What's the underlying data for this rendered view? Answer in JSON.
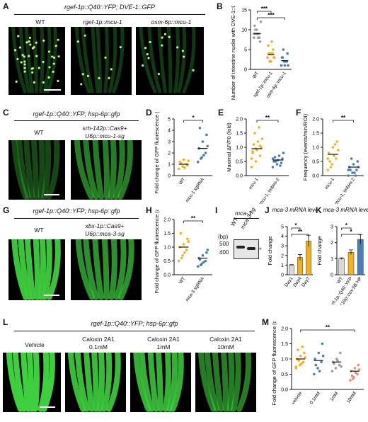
{
  "panels": {
    "A": {
      "letter": "A",
      "header": "rgef-1p::Q40::YFP; DVE-1::GFP",
      "labels": [
        "WT",
        "rgef-1p::mcu-1",
        "osm-6p::mcu-1"
      ]
    },
    "B": {
      "letter": "B"
    },
    "C": {
      "letter": "C",
      "header": "rgef-1p::Q40::YFP; hsp-6p::gfp",
      "labels": [
        "WT",
        "srh-142p::Cas9+",
        "U6p::mcu-1-sg"
      ]
    },
    "D": {
      "letter": "D"
    },
    "E": {
      "letter": "E"
    },
    "F": {
      "letter": "F"
    },
    "G": {
      "letter": "G",
      "header": "rgef-1p::Q40::YFP; hsp-6p::gfp",
      "labels": [
        "WT",
        "xbx-1p::Cas9+",
        "U6p::mca-3-sg"
      ]
    },
    "H": {
      "letter": "H"
    },
    "I": {
      "letter": "I",
      "title": "mca-3",
      "lanes": [
        "WT",
        "mca-3-sg"
      ],
      "bp_label": "(bp)",
      "markers": [
        "500",
        "400"
      ],
      "star": "*"
    },
    "J": {
      "letter": "J"
    },
    "K": {
      "letter": "K"
    },
    "L": {
      "letter": "L",
      "header": "rgef-1p::Q40::YFP; hsp-6p::gfp",
      "labels": [
        "Vehicle",
        "Caloxin 2A1",
        "0.1mM",
        "Caloxin 2A1",
        "1mM",
        "Caloxin 2A1",
        "10mM"
      ]
    },
    "M": {
      "letter": "M"
    }
  },
  "chart_data": [
    {
      "id": "B",
      "type": "scatter",
      "title": "",
      "ylabel": "Number of intestine nuclei with DVE-1::GFP puncta",
      "ylim": [
        0,
        15
      ],
      "yticks": [
        0,
        5,
        10,
        15
      ],
      "categories": [
        "WT",
        "rgef-1p::mcu-1",
        "osm-6p::mcu-1"
      ],
      "means": [
        9,
        3.7,
        2.2
      ],
      "points": [
        [
          9,
          10,
          8,
          11,
          9,
          7,
          10,
          8,
          12,
          9,
          9,
          8
        ],
        [
          3,
          4,
          5,
          6,
          2,
          3,
          4,
          7,
          3,
          2,
          4,
          3
        ],
        [
          1,
          2,
          2,
          3,
          1,
          4,
          3,
          2,
          1,
          5,
          2,
          1
        ]
      ],
      "colors": [
        "#9e9e9e",
        "#f5b01d",
        "#4a7fb5"
      ],
      "sig": [
        {
          "from": 0,
          "to": 1,
          "label": "***"
        },
        {
          "from": 0,
          "to": 2,
          "label": "***"
        }
      ]
    },
    {
      "id": "D",
      "type": "scatter",
      "ylabel": "Fold change of GFP fluorescence (a.u.)",
      "ylim": [
        0,
        5
      ],
      "yticks": [
        0,
        1,
        2,
        3,
        4,
        5
      ],
      "categories": [
        "WT",
        "mcu-1 sgRNA"
      ],
      "means": [
        1.0,
        2.4
      ],
      "points": [
        [
          0.6,
          0.8,
          1.0,
          1.2,
          1.4,
          0.9,
          1.1,
          0.7,
          1.3
        ],
        [
          1.2,
          1.6,
          2.0,
          2.4,
          3.0,
          3.6,
          4.2,
          1.8,
          2.6,
          1.5
        ]
      ],
      "colors": [
        "#f5b01d",
        "#4a7fb5"
      ],
      "sig": [
        {
          "from": 0,
          "to": 1,
          "label": "*"
        }
      ]
    },
    {
      "id": "E",
      "type": "scatter",
      "ylabel": "Maximal ΔF/F0 (fold)",
      "ylim": [
        0,
        2
      ],
      "yticks": [
        0.0,
        0.5,
        1.0,
        1.5,
        2.0
      ],
      "categories": [
        "mcu-1",
        "mcu-1; tmbim-2"
      ],
      "means": [
        0.95,
        0.55
      ],
      "points": [
        [
          0.3,
          0.5,
          0.7,
          0.8,
          0.9,
          1.0,
          1.1,
          1.2,
          1.3,
          1.5,
          1.7,
          0.6,
          0.95,
          1.05,
          0.85
        ],
        [
          0.3,
          0.4,
          0.45,
          0.5,
          0.55,
          0.6,
          0.65,
          0.7,
          0.8,
          0.5,
          0.35,
          0.6
        ]
      ],
      "colors": [
        "#f5b01d",
        "#4a7fb5"
      ],
      "sig": [
        {
          "from": 0,
          "to": 1,
          "label": "**"
        }
      ]
    },
    {
      "id": "F",
      "type": "scatter",
      "ylabel": "Frequency (events/min/ROI)",
      "ylim": [
        0,
        2
      ],
      "yticks": [
        0.0,
        0.5,
        1.0,
        1.5,
        2.0
      ],
      "categories": [
        "mcu-1",
        "mcu-1; tmbim-2"
      ],
      "means": [
        0.75,
        0.3
      ],
      "points": [
        [
          0.2,
          0.4,
          0.6,
          0.8,
          1.0,
          1.2,
          0.5,
          0.7,
          0.9,
          0.3,
          1.1,
          0.6
        ],
        [
          0.0,
          0.1,
          0.2,
          0.3,
          0.4,
          0.5,
          0.2,
          0.1,
          0.3,
          0.6,
          0.0,
          0.2
        ]
      ],
      "colors": [
        "#f5b01d",
        "#4a7fb5"
      ],
      "sig": [
        {
          "from": 0,
          "to": 1,
          "label": "**"
        }
      ]
    },
    {
      "id": "H",
      "type": "scatter",
      "ylabel": "Fold change of GFP fluorescence (a.u.)",
      "ylim": [
        0,
        2
      ],
      "yticks": [
        0.0,
        0.5,
        1.0,
        1.5,
        2.0
      ],
      "categories": [
        "WT",
        "mca-3 sgRNA"
      ],
      "means": [
        1.0,
        0.6
      ],
      "points": [
        [
          0.5,
          0.7,
          0.9,
          1.0,
          1.1,
          1.3,
          1.5,
          0.8,
          1.2,
          0.6
        ],
        [
          0.3,
          0.4,
          0.5,
          0.6,
          0.7,
          0.8,
          0.55,
          0.45,
          0.9,
          0.35
        ]
      ],
      "colors": [
        "#f5b01d",
        "#4a7fb5"
      ],
      "sig": [
        {
          "from": 0,
          "to": 1,
          "label": "**"
        }
      ]
    },
    {
      "id": "J",
      "type": "bar",
      "title": "mca-3 mRNA level",
      "ylabel": "Fold change",
      "ylim": [
        0,
        5
      ],
      "yticks": [
        0,
        1,
        2,
        3,
        4,
        5
      ],
      "categories": [
        "Day1",
        "Day4",
        "Day7"
      ],
      "values": [
        1.0,
        1.8,
        3.5
      ],
      "errors": [
        0.05,
        0.3,
        0.6
      ],
      "colors": [
        "#d9d9d9",
        "#f5b01d",
        "#f5b01d"
      ],
      "sig": [
        {
          "from": 0,
          "to": 1,
          "label": "*"
        },
        {
          "from": 0,
          "to": 2,
          "label": "**"
        }
      ]
    },
    {
      "id": "K",
      "type": "bar",
      "title": "mca-3 mRNA level",
      "ylabel": "Fold change",
      "ylim": [
        0,
        3
      ],
      "yticks": [
        0,
        1,
        2,
        3
      ],
      "categories": [
        "WT",
        "rgef-1p::Q40::YFP",
        "unc-119p::cox-5B HP"
      ],
      "values": [
        1.0,
        1.4,
        2.2
      ],
      "errors": [
        0.05,
        0.15,
        0.3
      ],
      "colors": [
        "#d9d9d9",
        "#f5b01d",
        "#4a7fb5"
      ],
      "sig": [
        {
          "from": 0,
          "to": 1,
          "label": "*"
        },
        {
          "from": 0,
          "to": 2,
          "label": "*"
        }
      ]
    },
    {
      "id": "M",
      "type": "scatter",
      "ylabel": "Fold change of GFP fluorescence (a.u.)",
      "ylim": [
        0,
        2
      ],
      "yticks": [
        0.0,
        0.5,
        1.0,
        1.5,
        2.0
      ],
      "categories": [
        "vehicle",
        "0.1mM",
        "1mM",
        "10mM"
      ],
      "means": [
        1.0,
        0.95,
        0.9,
        0.6
      ],
      "points": [
        [
          0.7,
          0.8,
          0.9,
          1.0,
          1.1,
          1.2,
          1.3,
          0.85,
          1.05,
          0.95,
          1.4,
          0.75
        ],
        [
          0.5,
          0.7,
          0.9,
          1.0,
          1.2,
          1.5,
          0.8,
          0.6,
          1.1
        ],
        [
          0.6,
          0.7,
          0.8,
          0.9,
          1.0,
          1.2,
          0.85,
          0.95,
          0.75
        ],
        [
          0.3,
          0.4,
          0.5,
          0.6,
          0.7,
          0.8,
          0.45,
          0.55,
          0.65,
          0.35
        ]
      ],
      "colors": [
        "#f5b01d",
        "#4a7fb5",
        "#9e9e9e",
        "#f08a6a"
      ],
      "sig": [
        {
          "from": 0,
          "to": 3,
          "label": "**"
        }
      ]
    }
  ]
}
